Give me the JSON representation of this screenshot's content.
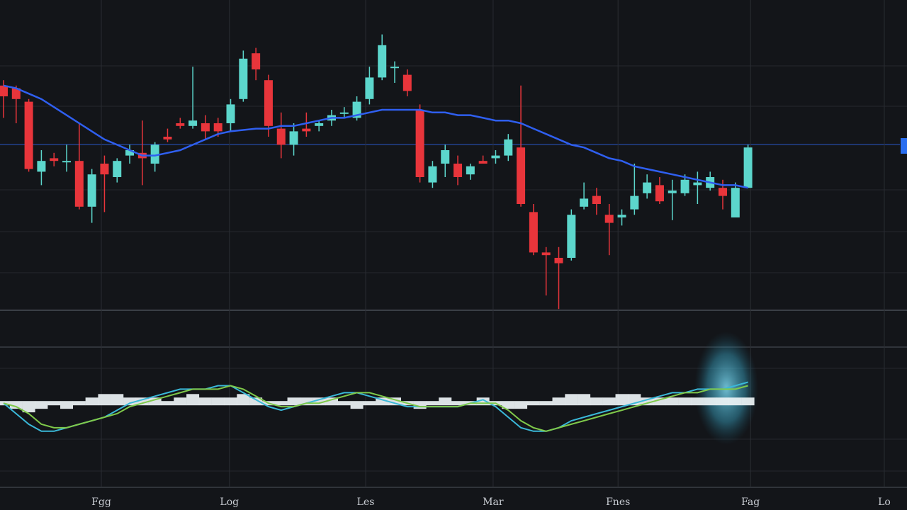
{
  "chart_data": [
    {
      "type": "candlestick",
      "x": [
        0,
        1,
        2,
        3,
        4,
        5,
        6,
        7,
        8,
        9,
        10,
        11,
        12,
        13,
        14,
        15,
        16,
        17,
        18,
        19,
        20,
        21,
        22,
        23,
        24,
        25,
        26,
        27,
        28,
        29,
        30,
        31,
        32,
        33,
        34,
        35,
        36,
        37,
        38,
        39,
        40,
        41,
        42,
        43,
        44,
        45,
        46,
        47,
        48,
        49,
        50,
        51,
        52,
        53,
        54,
        55,
        56,
        57,
        58,
        59
      ],
      "open": [
        84,
        83,
        78,
        52,
        57,
        56,
        56,
        39,
        55,
        50,
        58,
        59,
        55,
        65,
        70,
        69,
        70,
        70,
        70,
        79,
        96,
        86,
        68,
        62,
        68,
        69,
        71,
        74,
        72,
        79,
        87,
        91,
        88,
        75,
        48,
        55,
        55,
        51,
        56,
        57,
        58,
        61,
        37,
        22,
        20,
        20,
        39,
        43,
        36,
        35,
        38,
        44,
        47,
        44,
        44,
        47,
        46,
        46,
        35,
        46
      ],
      "close": [
        80,
        79,
        53,
        56,
        56,
        56,
        39,
        51,
        51,
        56,
        60,
        57,
        62,
        64,
        69,
        71,
        67,
        67,
        77,
        94,
        90,
        69,
        62,
        67,
        67,
        70,
        73,
        74,
        78,
        87,
        99,
        91,
        82,
        50,
        54,
        60,
        50,
        54,
        55,
        58,
        64,
        40,
        22,
        21,
        18,
        36,
        42,
        40,
        33,
        36,
        43,
        48,
        41,
        45,
        49,
        48,
        50,
        43,
        46,
        61
      ],
      "high": [
        86,
        84,
        79,
        60,
        59,
        62,
        70,
        53,
        58,
        57,
        62,
        71,
        63,
        68,
        72,
        91,
        73,
        72,
        79,
        97,
        98,
        88,
        74,
        70,
        74,
        71,
        75,
        76,
        80,
        91,
        103,
        93,
        90,
        77,
        56,
        62,
        58,
        55,
        58,
        60,
        66,
        84,
        40,
        24,
        24,
        38,
        48,
        46,
        40,
        38,
        55,
        51,
        50,
        49,
        51,
        52,
        52,
        49,
        48,
        62
      ],
      "low": [
        72,
        70,
        52,
        47,
        54,
        52,
        38,
        33,
        37,
        48,
        55,
        47,
        52,
        63,
        68,
        68,
        64,
        65,
        67,
        78,
        86,
        65,
        57,
        58,
        65,
        67,
        69,
        72,
        71,
        77,
        86,
        85,
        80,
        48,
        46,
        50,
        47,
        49,
        55,
        55,
        56,
        39,
        21,
        6,
        1,
        19,
        38,
        36,
        21,
        32,
        36,
        42,
        40,
        34,
        43,
        40,
        45,
        38,
        35,
        46
      ],
      "up_color": "#5cd6cc",
      "down_color": "#e8353b",
      "moving_average": {
        "color": "#2f5ff0",
        "values": [
          84,
          83,
          81,
          79,
          76,
          73,
          70,
          67,
          64,
          62,
          60,
          58,
          58,
          59,
          60,
          62,
          64,
          66,
          67,
          67.5,
          68,
          68,
          69,
          69,
          70,
          71,
          72,
          72,
          73,
          74,
          75,
          75,
          75,
          75,
          74,
          74,
          73,
          73,
          72,
          71,
          71,
          70,
          68,
          66,
          64,
          62,
          61,
          59,
          57,
          56,
          54,
          53,
          52,
          51,
          50,
          49,
          48,
          47,
          47,
          46
        ]
      },
      "xlim": [
        -0.28,
        71.6
      ],
      "ylim": [
        0,
        115
      ],
      "grid": true
    },
    {
      "type": "line",
      "x": [
        0,
        1,
        2,
        3,
        4,
        5,
        6,
        7,
        8,
        9,
        10,
        11,
        12,
        13,
        14,
        15,
        16,
        17,
        18,
        19,
        20,
        21,
        22,
        23,
        24,
        25,
        26,
        27,
        28,
        29,
        30,
        31,
        32,
        33,
        34,
        35,
        36,
        37,
        38,
        39,
        40,
        41,
        42,
        43,
        44,
        45,
        46,
        47,
        48,
        49,
        50,
        51,
        52,
        53,
        54,
        55,
        56,
        57,
        58,
        59
      ],
      "series": [
        {
          "color": "#3ab8d8",
          "values": [
            0,
            -3,
            -6,
            -8,
            -8,
            -7,
            -6,
            -5,
            -4,
            -2,
            0,
            1,
            2,
            3,
            4,
            4,
            4,
            5,
            5,
            3,
            1,
            -1,
            -2,
            -1,
            0,
            1,
            2,
            3,
            3,
            2,
            1,
            0,
            -1,
            -1,
            -1,
            -1,
            -1,
            0,
            1,
            -1,
            -4,
            -7,
            -8,
            -8,
            -7,
            -5,
            -4,
            -3,
            -2,
            -1,
            0,
            1,
            2,
            3,
            3,
            4,
            4,
            4,
            5,
            6
          ]
        },
        {
          "color": "#7fc94a",
          "values": [
            0,
            -1,
            -3,
            -6,
            -7,
            -7,
            -6,
            -5,
            -4,
            -3,
            -1,
            0,
            1,
            2,
            3,
            4,
            4,
            4,
            5,
            4,
            2,
            0,
            -1,
            -1,
            0,
            0,
            1,
            2,
            3,
            3,
            2,
            1,
            0,
            -1,
            -1,
            -1,
            -1,
            0,
            0,
            0,
            -2,
            -5,
            -7,
            -8,
            -7,
            -6,
            -5,
            -4,
            -3,
            -2,
            -1,
            0,
            1,
            2,
            3,
            3,
            4,
            4,
            4,
            5
          ]
        }
      ],
      "histogram": {
        "color": "#eef4f6",
        "values": [
          0,
          -1,
          -2,
          -1,
          0,
          -1,
          0,
          1,
          2,
          2,
          1,
          1,
          1,
          0,
          1,
          2,
          1,
          1,
          1,
          2,
          1,
          0,
          0,
          1,
          1,
          1,
          1,
          0,
          -1,
          0,
          1,
          1,
          0,
          -1,
          0,
          1,
          0,
          0,
          1,
          0,
          -1,
          -1,
          0,
          0,
          1,
          2,
          2,
          1,
          1,
          2,
          2,
          1,
          1,
          1,
          1,
          1,
          1,
          1,
          1,
          1
        ]
      },
      "xlim": [
        -0.28,
        71.6
      ],
      "ylim": [
        -24,
        16
      ],
      "xticks": [
        {
          "value": 7.75,
          "label": "Fgg"
        },
        {
          "value": 17.9,
          "label": "Log"
        },
        {
          "value": 28.7,
          "label": "Les"
        },
        {
          "value": 38.8,
          "label": "Mar"
        },
        {
          "value": 48.7,
          "label": "Fnes"
        },
        {
          "value": 59.2,
          "label": "Fag"
        },
        {
          "value": 69.8,
          "label": "Lo"
        }
      ],
      "grid": true
    }
  ]
}
